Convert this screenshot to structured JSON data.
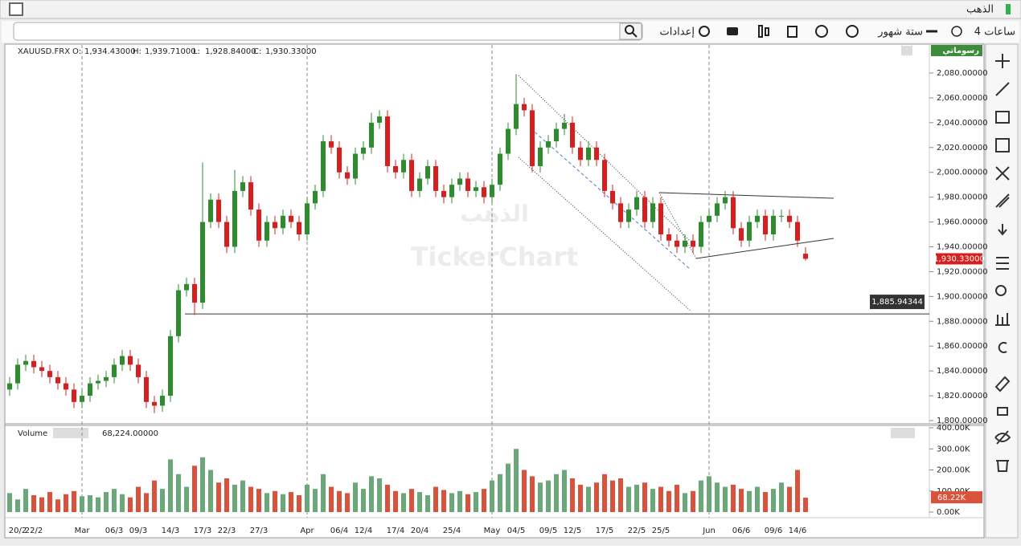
{
  "window": {
    "title": "الذهب"
  },
  "toolbar": {
    "interval": "4 ساعات",
    "range": "ستة شهور",
    "settings": "إعدادات",
    "drawings": "رسوماتي"
  },
  "watermark": {
    "arabic": "الذهب",
    "brand": "TickerChart"
  },
  "chart_data": {
    "type": "candlestick",
    "symbol": "XAUUSD.FRX",
    "ohlc_header": [
      {
        "label": "O:",
        "text": "1,934.43000"
      },
      {
        "label": "H:",
        "text": "1,939.71000"
      },
      {
        "label": "L:",
        "text": "1,928.84000"
      },
      {
        "label": "C:",
        "text": "1,930.33000"
      }
    ],
    "categories": [
      null,
      "20/2",
      null,
      "22/2",
      null,
      null,
      null,
      null,
      null,
      "Mar",
      null,
      null,
      null,
      "06/3",
      null,
      null,
      "09/3",
      null,
      null,
      null,
      "14/3",
      null,
      null,
      null,
      "17/3",
      null,
      null,
      "22/3",
      null,
      null,
      null,
      "27/3",
      null,
      null,
      null,
      null,
      null,
      "Apr",
      null,
      null,
      null,
      "06/4",
      null,
      null,
      "12/4",
      null,
      null,
      null,
      "17/4",
      null,
      null,
      "20/4",
      null,
      null,
      null,
      "25/4",
      null,
      null,
      null,
      null,
      "May",
      null,
      null,
      "04/5",
      null,
      null,
      null,
      "09/5",
      null,
      null,
      "12/5",
      null,
      null,
      null,
      "17/5",
      null,
      null,
      null,
      "22/5",
      null,
      null,
      "25/5",
      null,
      null,
      null,
      null,
      null,
      "Jun",
      null,
      null,
      null,
      "06/6",
      null,
      null,
      null,
      "09/6",
      null,
      null,
      "14/6",
      null
    ],
    "open": [
      1825,
      1830,
      1845,
      1848,
      1843,
      1840,
      1835,
      1830,
      1825,
      1815,
      1820,
      1830,
      1832,
      1835,
      1845,
      1852,
      1845,
      1835,
      1815,
      1812,
      1820,
      1868,
      1905,
      1910,
      1895,
      1960,
      1978,
      1960,
      1940,
      1985,
      1992,
      1970,
      1945,
      1960,
      1955,
      1965,
      1960,
      1950,
      1975,
      1985,
      2025,
      2020,
      2000,
      1995,
      2015,
      2020,
      2040,
      2045,
      2005,
      2000,
      2010,
      1985,
      1995,
      2005,
      1985,
      1980,
      1990,
      1995,
      1985,
      1988,
      1980,
      1990,
      2015,
      2035,
      2055,
      2050,
      2005,
      2020,
      2025,
      2035,
      2040,
      2020,
      2010,
      2020,
      2010,
      1985,
      1975,
      1960,
      1970,
      1980,
      1960,
      1975,
      1950,
      1945,
      1940,
      1945,
      1940,
      1960,
      1965,
      1975,
      1980,
      1955,
      1945,
      1960,
      1965,
      1950,
      1965,
      1965,
      1960,
      1934.43
    ],
    "high": [
      1835,
      1850,
      1853,
      1853,
      1848,
      1845,
      1840,
      1835,
      1830,
      1825,
      1835,
      1837,
      1840,
      1850,
      1857,
      1857,
      1850,
      1840,
      1820,
      1825,
      1873,
      1910,
      1915,
      1915,
      2008,
      1983,
      1983,
      1965,
      2002,
      1997,
      1997,
      1975,
      1965,
      1965,
      1970,
      1970,
      1965,
      1980,
      1990,
      2030,
      2030,
      2025,
      2005,
      2020,
      2025,
      2048,
      2050,
      2050,
      2010,
      2015,
      2015,
      2000,
      2010,
      2010,
      1990,
      1995,
      2000,
      2000,
      1993,
      1993,
      1995,
      2020,
      2040,
      2079,
      2060,
      2055,
      2025,
      2030,
      2040,
      2047,
      2045,
      2025,
      2025,
      2025,
      2015,
      1990,
      1980,
      1975,
      1985,
      1985,
      1980,
      1980,
      1955,
      1950,
      1950,
      1950,
      1965,
      1970,
      1980,
      1985,
      1985,
      1960,
      1965,
      1970,
      1970,
      1970,
      1970,
      1970,
      1965,
      1939.71
    ],
    "low": [
      1820,
      1825,
      1840,
      1838,
      1835,
      1830,
      1825,
      1820,
      1810,
      1810,
      1815,
      1825,
      1827,
      1830,
      1840,
      1840,
      1830,
      1810,
      1806,
      1807,
      1815,
      1863,
      1900,
      1885,
      1890,
      1955,
      1955,
      1935,
      1935,
      1980,
      1965,
      1940,
      1940,
      1950,
      1950,
      1955,
      1945,
      1945,
      1970,
      1980,
      2015,
      1995,
      1990,
      1990,
      2010,
      2015,
      2035,
      2000,
      1995,
      1995,
      1980,
      1980,
      1990,
      1980,
      1975,
      1975,
      1985,
      1980,
      1980,
      1975,
      1975,
      1985,
      2010,
      2030,
      2045,
      2000,
      2000,
      2015,
      2020,
      2030,
      2015,
      2005,
      2005,
      2005,
      1980,
      1970,
      1955,
      1955,
      1965,
      1955,
      1955,
      1945,
      1940,
      1935,
      1935,
      1935,
      1935,
      1955,
      1960,
      1970,
      1950,
      1940,
      1940,
      1955,
      1945,
      1945,
      1960,
      1955,
      1940,
      1928.84
    ],
    "close": [
      1830,
      1845,
      1848,
      1843,
      1840,
      1835,
      1830,
      1825,
      1815,
      1820,
      1830,
      1832,
      1835,
      1845,
      1852,
      1845,
      1835,
      1815,
      1812,
      1820,
      1868,
      1905,
      1910,
      1895,
      1960,
      1978,
      1960,
      1940,
      1985,
      1992,
      1970,
      1945,
      1960,
      1955,
      1965,
      1960,
      1950,
      1975,
      1985,
      2025,
      2020,
      2000,
      1995,
      2015,
      2020,
      2040,
      2045,
      2005,
      2000,
      2010,
      1985,
      1995,
      2005,
      1985,
      1980,
      1990,
      1995,
      1985,
      1988,
      1980,
      1990,
      2015,
      2035,
      2055,
      2050,
      2005,
      2020,
      2025,
      2035,
      2040,
      2020,
      2010,
      2020,
      2010,
      1985,
      1975,
      1960,
      1970,
      1980,
      1960,
      1975,
      1950,
      1945,
      1940,
      1945,
      1940,
      1960,
      1965,
      1975,
      1980,
      1955,
      1945,
      1960,
      1965,
      1950,
      1965,
      1965,
      1960,
      1945,
      1930.33
    ],
    "last_price_label": "1,930.33000",
    "up_color": "#2e8b2e",
    "down_color": "#d62020",
    "ylim": [
      1800,
      2080
    ],
    "yticks": [
      {
        "value": 1800,
        "label": "1,800.00000"
      },
      {
        "value": 1820,
        "label": "1,820.00000"
      },
      {
        "value": 1840,
        "label": "1,840.00000"
      },
      {
        "value": 1860,
        "label": "1,860.00000"
      },
      {
        "value": 1880,
        "label": "1,880.00000"
      },
      {
        "value": 1900,
        "label": "1,900.00000"
      },
      {
        "value": 1920,
        "label": "1,920.00000"
      },
      {
        "value": 1940,
        "label": "1,940.00000"
      },
      {
        "value": 1960,
        "label": "1,960.00000"
      },
      {
        "value": 1980,
        "label": "1,980.00000"
      },
      {
        "value": 2000,
        "label": "2,000.00000"
      },
      {
        "value": 2020,
        "label": "2,020.00000"
      },
      {
        "value": 2040,
        "label": "2,040.00000"
      },
      {
        "value": 2060,
        "label": "2,060.00000"
      },
      {
        "value": 2080,
        "label": "2,080.00000"
      }
    ],
    "hline": {
      "value": 1885.94344,
      "label": "1,885.94344"
    },
    "volume": {
      "title": "Volume",
      "header_label": "68,224.00000",
      "last_label": "68.22K",
      "values": [
        90000,
        60000,
        110000,
        80000,
        70000,
        95000,
        60000,
        85000,
        100000,
        75000,
        80000,
        70000,
        95000,
        110000,
        85000,
        70000,
        120000,
        90000,
        150000,
        110000,
        250000,
        180000,
        120000,
        220000,
        260000,
        200000,
        140000,
        160000,
        130000,
        150000,
        120000,
        110000,
        90000,
        100000,
        85000,
        95000,
        80000,
        130000,
        110000,
        180000,
        120000,
        100000,
        90000,
        140000,
        110000,
        170000,
        160000,
        130000,
        100000,
        90000,
        110000,
        95000,
        80000,
        120000,
        105000,
        90000,
        100000,
        85000,
        95000,
        110000,
        150000,
        180000,
        230000,
        300000,
        200000,
        170000,
        140000,
        150000,
        180000,
        200000,
        160000,
        130000,
        120000,
        140000,
        180000,
        150000,
        160000,
        120000,
        130000,
        140000,
        110000,
        120000,
        100000,
        130000,
        90000,
        100000,
        150000,
        170000,
        140000,
        120000,
        130000,
        110000,
        100000,
        120000,
        95000,
        110000,
        140000,
        120000,
        200000,
        68224
      ],
      "ylim": [
        0,
        400000
      ],
      "yticks": [
        {
          "value": 0,
          "label": "0.00K"
        },
        {
          "value": 100000,
          "label": "100.00K"
        },
        {
          "value": 200000,
          "label": "200.00K"
        },
        {
          "value": 300000,
          "label": "300.00K"
        },
        {
          "value": 400000,
          "label": "400.00K"
        }
      ]
    }
  }
}
